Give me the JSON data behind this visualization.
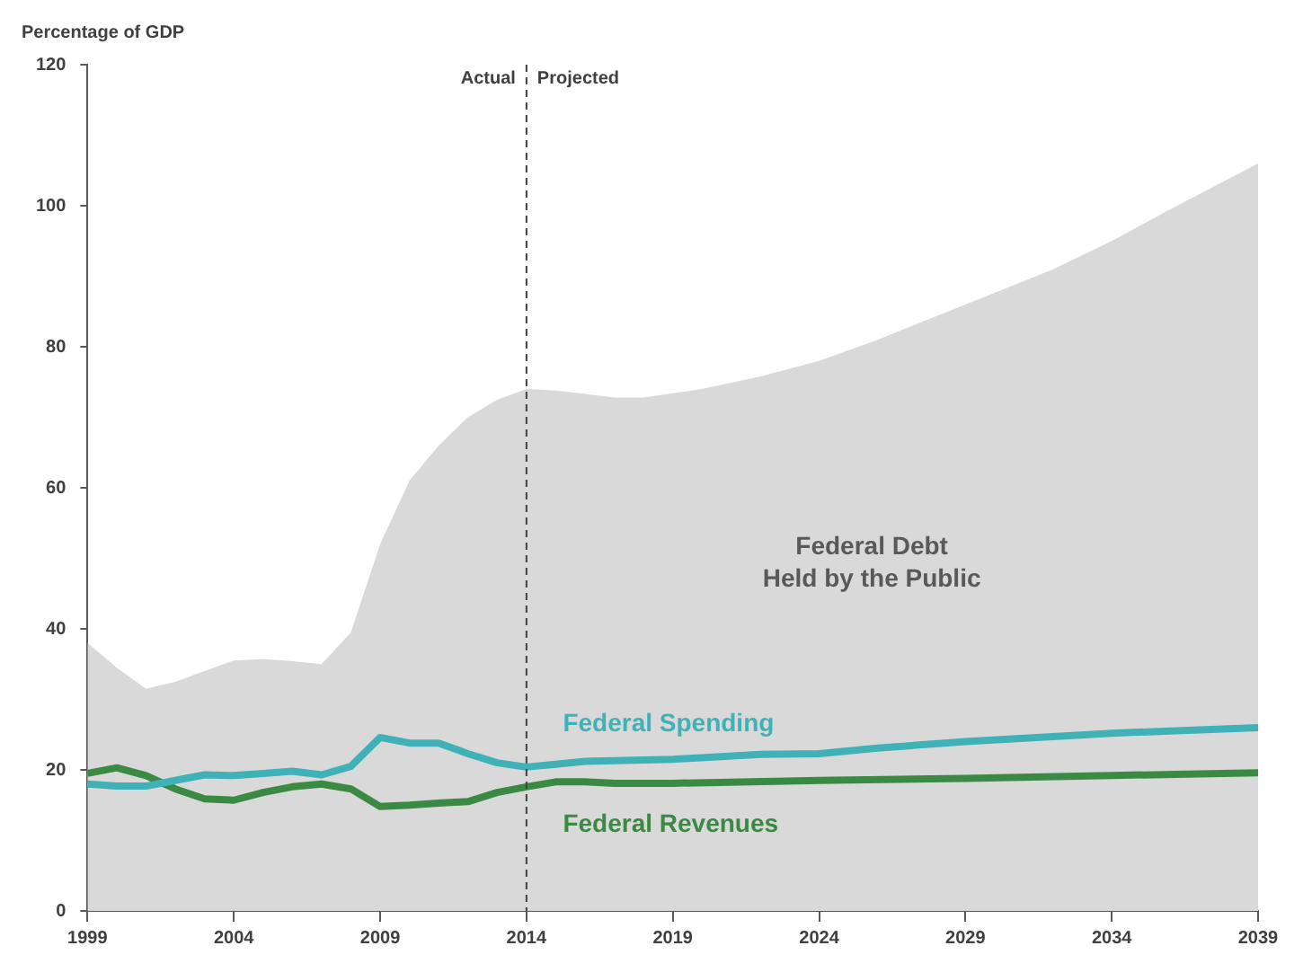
{
  "chart_data": {
    "type": "line",
    "ylabel": "Percentage of GDP",
    "xlim": [
      1999,
      2039
    ],
    "xticks": [
      1999,
      2004,
      2009,
      2014,
      2019,
      2024,
      2029,
      2034,
      2039
    ],
    "ylim": [
      0,
      120
    ],
    "yticks": [
      0,
      20,
      40,
      60,
      80,
      100,
      120
    ],
    "grid": false,
    "legend": false,
    "marker": "none",
    "series": [
      {
        "name": "Federal Debt\nHeld by the Public",
        "type": "area",
        "color": "#d9d9d9",
        "x": [
          1999,
          2000,
          2001,
          2002,
          2003,
          2004,
          2005,
          2006,
          2007,
          2008,
          2009,
          2010,
          2011,
          2012,
          2013,
          2014,
          2015,
          2016,
          2017,
          2018,
          2019,
          2020,
          2022,
          2024,
          2026,
          2029,
          2032,
          2034,
          2036,
          2039
        ],
        "values": [
          38,
          34.5,
          31.5,
          32.5,
          34,
          35.5,
          35.7,
          35.4,
          35,
          39.5,
          52,
          61,
          66,
          70,
          72.5,
          74,
          73.8,
          73.3,
          72.8,
          72.8,
          73.4,
          74,
          75.8,
          78,
          81,
          86,
          91,
          95,
          99.5,
          106
        ]
      },
      {
        "name": "Federal Spending",
        "type": "line",
        "color": "#3fb1b7",
        "x": [
          1999,
          2000,
          2001,
          2002,
          2003,
          2004,
          2005,
          2006,
          2007,
          2008,
          2009,
          2010,
          2011,
          2012,
          2013,
          2014,
          2015,
          2016,
          2017,
          2019,
          2022,
          2024,
          2026,
          2029,
          2034,
          2039
        ],
        "values": [
          18,
          17.7,
          17.7,
          18.5,
          19.3,
          19.2,
          19.5,
          19.8,
          19.3,
          20.5,
          24.6,
          23.8,
          23.8,
          22.3,
          21,
          20.4,
          20.8,
          21.2,
          21.3,
          21.5,
          22.2,
          22.3,
          23.1,
          24,
          25.2,
          26
        ]
      },
      {
        "name": "Federal Revenues",
        "type": "line",
        "color": "#3a8a43",
        "x": [
          1999,
          2000,
          2001,
          2002,
          2003,
          2004,
          2005,
          2006,
          2007,
          2008,
          2009,
          2010,
          2011,
          2012,
          2013,
          2014,
          2015,
          2016,
          2017,
          2019,
          2024,
          2029,
          2034,
          2039
        ],
        "values": [
          19.5,
          20.3,
          19.2,
          17.3,
          15.9,
          15.7,
          16.8,
          17.6,
          18,
          17.3,
          14.8,
          15,
          15.3,
          15.5,
          16.8,
          17.6,
          18.3,
          18.3,
          18.1,
          18.1,
          18.5,
          18.8,
          19.2,
          19.6
        ]
      }
    ],
    "ref_lines": [
      {
        "axis": "x",
        "value": 2014,
        "color": "#404040",
        "line_style": "dashed"
      }
    ],
    "annotations": [
      {
        "text": "Actual",
        "x": 2014,
        "y": 118
      },
      {
        "text": "Projected",
        "x": 2014,
        "y": 118
      }
    ]
  }
}
